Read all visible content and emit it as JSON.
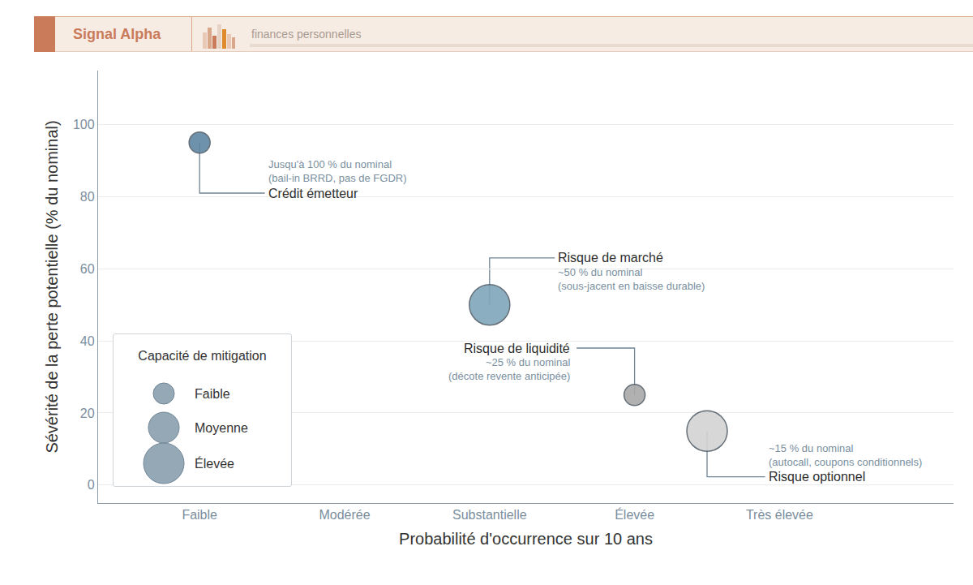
{
  "header": {
    "brand": "Signal Alpha",
    "tagline": "finances personnelles"
  },
  "chart_data": {
    "type": "scatter",
    "marker": "bubble",
    "x_label": "Probabilité d'occurrence sur 10 ans",
    "y_label": "Sévérité de la perte potentielle (% du nominal)",
    "xlim": [
      -0.7,
      5.2
    ],
    "xticks": [
      {
        "value": 0,
        "label": "Faible"
      },
      {
        "value": 1,
        "label": "Modérée"
      },
      {
        "value": 2,
        "label": "Substantielle"
      },
      {
        "value": 3,
        "label": "Élevée"
      },
      {
        "value": 4,
        "label": "Très élevée"
      }
    ],
    "ylim": [
      -5,
      115
    ],
    "yticks": [
      0,
      20,
      40,
      60,
      80,
      100
    ],
    "grid": true,
    "legend": "lower left",
    "size_legend": {
      "title": "Capacité de mitigation",
      "levels": [
        "Faible",
        "Moyenne",
        "Élevée"
      ]
    },
    "series": [
      {
        "name": "Crédit émetteur",
        "color": "#5f87a3",
        "x": [
          0
        ],
        "values": [
          95
        ],
        "mitigation": [
          "Faible"
        ],
        "annotation": [
          "Jusqu'à 100 % du nominal",
          "(bail-in BRRD, pas de FGDR)"
        ]
      },
      {
        "name": "Risque de marché",
        "color": "#7fa7ba",
        "x": [
          2
        ],
        "values": [
          50
        ],
        "mitigation": [
          "Élevée"
        ],
        "annotation": [
          "~50 % du nominal",
          "(sous-jacent en baisse durable)"
        ]
      },
      {
        "name": "Risque de liquidité",
        "color": "#a9a9a9",
        "x": [
          3
        ],
        "values": [
          25
        ],
        "mitigation": [
          "Faible"
        ],
        "annotation": [
          "~25 % du nominal",
          "(décote revente anticipée)"
        ]
      },
      {
        "name": "Risque optionnel",
        "color": "#d3d3d3",
        "x": [
          3.5
        ],
        "values": [
          15
        ],
        "mitigation": [
          "Élevée"
        ],
        "annotation": [
          "~15 % du nominal",
          "(autocall, coupons conditionnels)"
        ]
      }
    ]
  }
}
